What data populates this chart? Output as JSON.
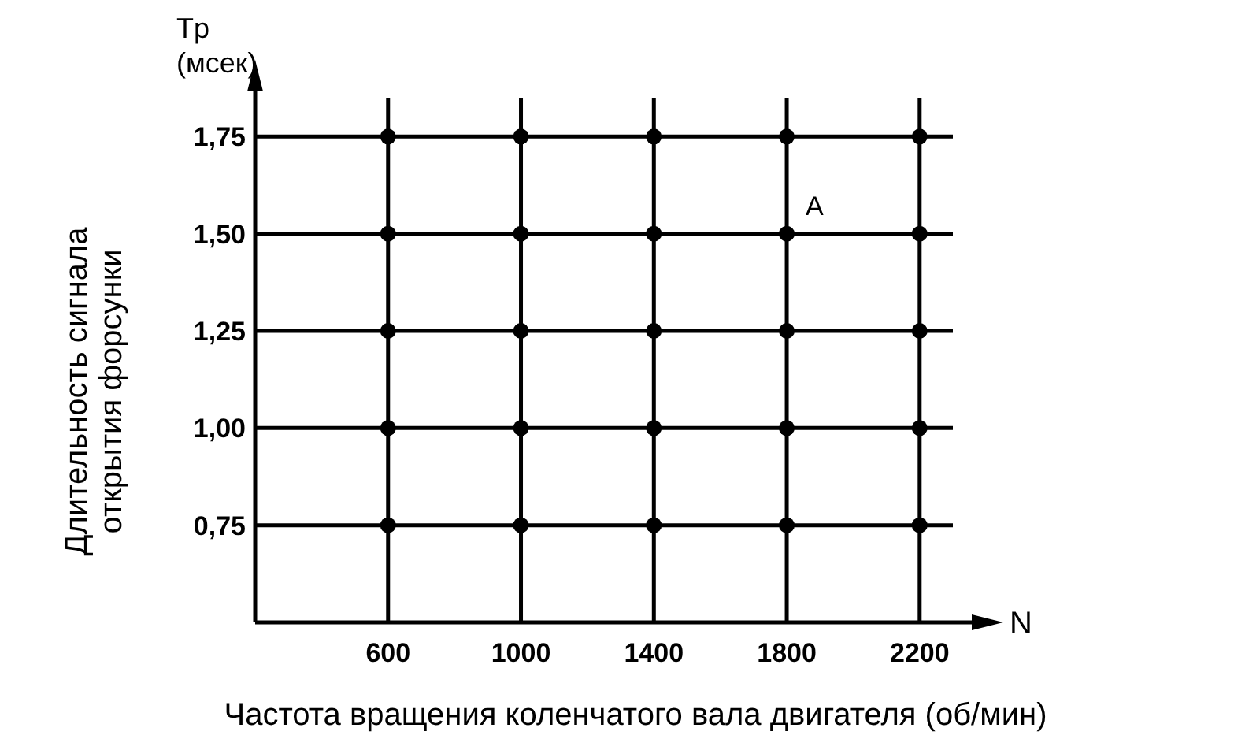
{
  "chart_data": {
    "type": "scatter",
    "xlabel": "Частота вращения коленчатого вала двигателя  (об/мин)",
    "ylabel": "Длительность сигнала открытия форсунки",
    "xlim": [
      200,
      2300
    ],
    "ylim": [
      0.5,
      1.85
    ],
    "xticks": [
      600,
      1000,
      1400,
      1800,
      2200
    ],
    "yticks": [
      {
        "value": 0.75,
        "label": "0,75"
      },
      {
        "value": 1.0,
        "label": "1,00"
      },
      {
        "value": 1.25,
        "label": "1,25"
      },
      {
        "value": 1.5,
        "label": "1,50"
      },
      {
        "value": 1.75,
        "label": "1,75"
      }
    ],
    "grid": true,
    "marker": "circle",
    "series": [
      {
        "color": "#000000",
        "x": [
          600,
          1000,
          1400,
          1800,
          2200,
          600,
          1000,
          1400,
          1800,
          2200,
          600,
          1000,
          1400,
          1800,
          2200,
          600,
          1000,
          1400,
          1800,
          2200,
          600,
          1000,
          1400,
          1800,
          2200
        ],
        "values": [
          0.75,
          0.75,
          0.75,
          0.75,
          0.75,
          1.0,
          1.0,
          1.0,
          1.0,
          1.0,
          1.25,
          1.25,
          1.25,
          1.25,
          1.25,
          1.5,
          1.5,
          1.5,
          1.5,
          1.5,
          1.75,
          1.75,
          1.75,
          1.75,
          1.75
        ]
      }
    ],
    "annotations": [
      "Tp (мсек)",
      "N",
      "A"
    ]
  }
}
